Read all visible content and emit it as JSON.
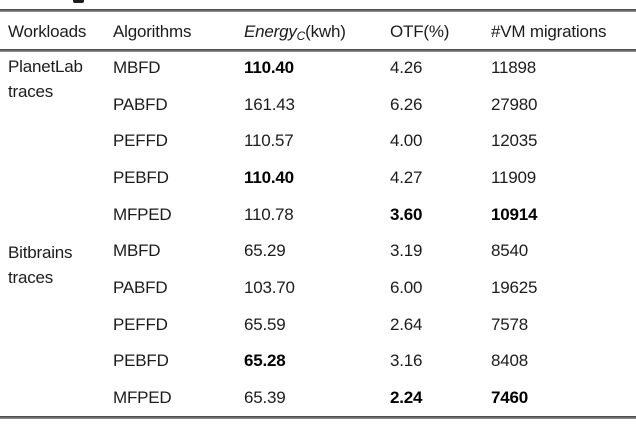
{
  "header": {
    "workloads": "Workloads",
    "algorithms": "Algorithms",
    "energy_name": "Energy",
    "energy_subscript": "C",
    "energy_unit": "(kwh)",
    "otf": "OTF(%)",
    "vm_migrations": "#VM migrations"
  },
  "groups": [
    {
      "name_line1": "PlanetLab",
      "name_line2": "traces"
    },
    {
      "name_line1": "Bitbrains",
      "name_line2": "traces"
    }
  ],
  "rows": [
    {
      "algorithm": "MBFD",
      "energy": "110.40",
      "otf": "4.26",
      "vm": "11898",
      "bold": [
        "energy"
      ]
    },
    {
      "algorithm": "PABFD",
      "energy": "161.43",
      "otf": "6.26",
      "vm": "27980",
      "bold": []
    },
    {
      "algorithm": "PEFFD",
      "energy": "110.57",
      "otf": "4.00",
      "vm": "12035",
      "bold": []
    },
    {
      "algorithm": "PEBFD",
      "energy": "110.40",
      "otf": "4.27",
      "vm": "11909",
      "bold": [
        "energy"
      ]
    },
    {
      "algorithm": "MFPED",
      "energy": "110.78",
      "otf": "3.60",
      "vm": "10914",
      "bold": [
        "otf",
        "vm"
      ]
    },
    {
      "algorithm": "MBFD",
      "energy": "65.29",
      "otf": "3.19",
      "vm": "8540",
      "bold": []
    },
    {
      "algorithm": "PABFD",
      "energy": "103.70",
      "otf": "6.00",
      "vm": "19625",
      "bold": []
    },
    {
      "algorithm": "PEFFD",
      "energy": "65.59",
      "otf": "2.64",
      "vm": "7578",
      "bold": []
    },
    {
      "algorithm": "PEBFD",
      "energy": "65.28",
      "otf": "3.16",
      "vm": "8408",
      "bold": [
        "energy"
      ]
    },
    {
      "algorithm": "MFPED",
      "energy": "65.39",
      "otf": "2.24",
      "vm": "7460",
      "bold": [
        "otf",
        "vm"
      ]
    }
  ],
  "colors": {
    "text": "#1c1c1c",
    "rule": "#4a4a4a",
    "background": "#ffffff"
  }
}
